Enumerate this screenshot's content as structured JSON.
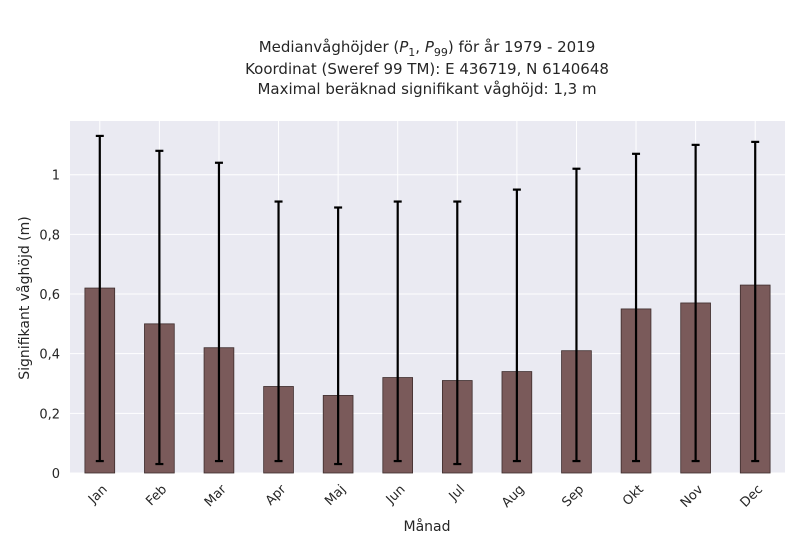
{
  "chart_data": {
    "type": "bar",
    "title_lines": [
      "Medianvåghöjder (P1, P99) för år 1979 - 2019",
      "Koordinat (Sweref 99 TM): E 436719, N 6140648",
      "Maximal beräknad signifikant våghöjd: 1,3 m"
    ],
    "xlabel": "Månad",
    "ylabel": "Signifikant våghöjd (m)",
    "categories": [
      "Jan",
      "Feb",
      "Mar",
      "Apr",
      "Maj",
      "Jun",
      "Jul",
      "Aug",
      "Sep",
      "Okt",
      "Nov",
      "Dec"
    ],
    "values": [
      0.62,
      0.5,
      0.42,
      0.29,
      0.26,
      0.32,
      0.31,
      0.34,
      0.41,
      0.55,
      0.57,
      0.63
    ],
    "error_low": [
      0.04,
      0.03,
      0.04,
      0.04,
      0.03,
      0.04,
      0.03,
      0.04,
      0.04,
      0.04,
      0.04,
      0.04
    ],
    "error_high": [
      1.13,
      1.08,
      1.04,
      0.91,
      0.89,
      0.91,
      0.91,
      0.95,
      1.02,
      1.07,
      1.1,
      1.11
    ],
    "ylim": [
      0,
      1.18
    ],
    "yticks": [
      0,
      0.2,
      0.4,
      0.6,
      0.8,
      1
    ],
    "ytick_labels": [
      "0",
      "0,2",
      "0,4",
      "0,6",
      "0,8",
      "1"
    ],
    "grid": true,
    "colors": {
      "bar": "#7a5a5a",
      "bar_edge": "#3d2c2c",
      "error": "#000000",
      "plot_bg": "#eaeaf2",
      "grid": "#ffffff"
    }
  }
}
